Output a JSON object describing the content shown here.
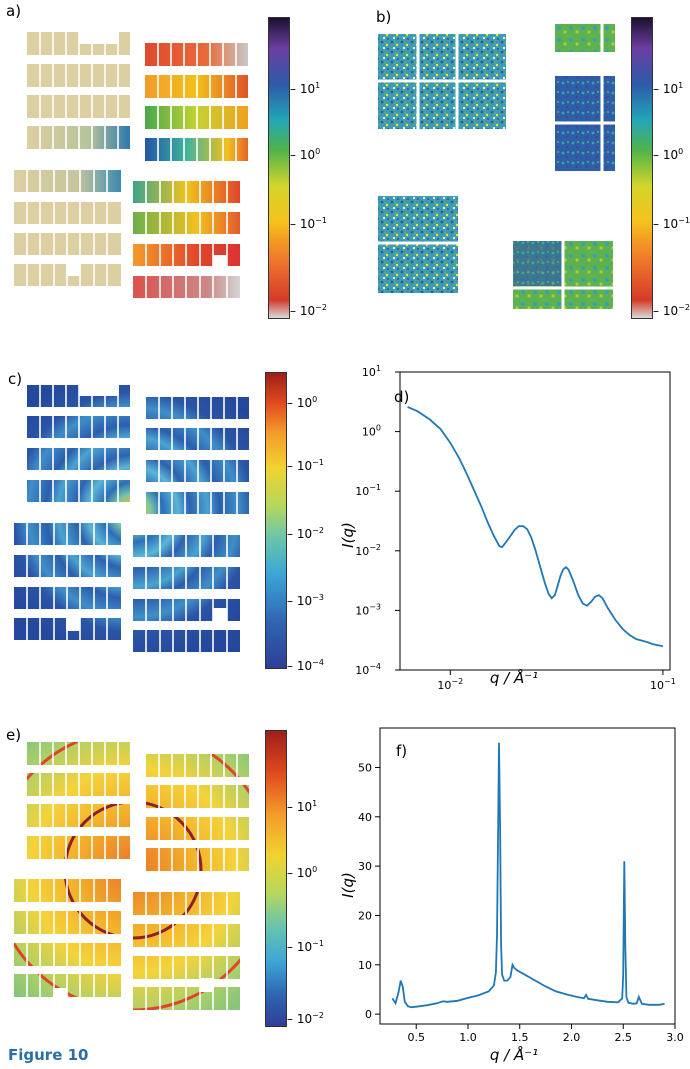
{
  "figure": {
    "caption_label": "Figure 10",
    "panel_labels": [
      "a)",
      "b)",
      "c)",
      "d)",
      "e)",
      "f)"
    ]
  },
  "colorbars": {
    "a": {
      "ticks": [
        {
          "base": "10",
          "exp": "1",
          "frac": 0.24
        },
        {
          "base": "10",
          "exp": "0",
          "frac": 0.46
        },
        {
          "base": "10",
          "exp": "−1",
          "frac": 0.69
        },
        {
          "base": "10",
          "exp": "−2",
          "frac": 0.98
        }
      ]
    },
    "b": {
      "ticks": [
        {
          "base": "10",
          "exp": "1",
          "frac": 0.24
        },
        {
          "base": "10",
          "exp": "0",
          "frac": 0.46
        },
        {
          "base": "10",
          "exp": "−1",
          "frac": 0.69
        },
        {
          "base": "10",
          "exp": "−2",
          "frac": 0.98
        }
      ]
    },
    "c": {
      "ticks": [
        {
          "base": "10",
          "exp": "0",
          "frac": 0.105
        },
        {
          "base": "10",
          "exp": "−1",
          "frac": 0.32
        },
        {
          "base": "10",
          "exp": "−2",
          "frac": 0.55
        },
        {
          "base": "10",
          "exp": "−3",
          "frac": 0.775
        },
        {
          "base": "10",
          "exp": "−4",
          "frac": 0.995
        }
      ]
    },
    "e": {
      "ticks": [
        {
          "base": "10",
          "exp": "1",
          "frac": 0.26
        },
        {
          "base": "10",
          "exp": "0",
          "frac": 0.485
        },
        {
          "base": "10",
          "exp": "−1",
          "frac": 0.735
        },
        {
          "base": "10",
          "exp": "−2",
          "frac": 0.98
        }
      ]
    }
  },
  "chart_data": [
    {
      "panel": "d)",
      "type": "line",
      "xscale": "log",
      "yscale": "log",
      "xlim": [
        0.0058,
        0.108
      ],
      "ylim": [
        0.0001,
        10
      ],
      "xticks": [
        {
          "base": "10",
          "exp": "−2",
          "value": 0.01
        },
        {
          "base": "10",
          "exp": "−1",
          "value": 0.1
        }
      ],
      "yticks": [
        {
          "base": "10",
          "exp": "1",
          "value": 10
        },
        {
          "base": "10",
          "exp": "0",
          "value": 1
        },
        {
          "base": "10",
          "exp": "−1",
          "value": 0.1
        },
        {
          "base": "10",
          "exp": "−2",
          "value": 0.01
        },
        {
          "base": "10",
          "exp": "−3",
          "value": 0.001
        },
        {
          "base": "10",
          "exp": "−4",
          "value": 0.0001
        }
      ],
      "xlabel": "q / Å⁻¹",
      "ylabel": "I(q)",
      "x": [
        0.0063,
        0.007,
        0.008,
        0.009,
        0.01,
        0.011,
        0.012,
        0.013,
        0.014,
        0.015,
        0.016,
        0.017,
        0.0175,
        0.018,
        0.019,
        0.02,
        0.021,
        0.022,
        0.023,
        0.024,
        0.025,
        0.026,
        0.027,
        0.028,
        0.029,
        0.03,
        0.031,
        0.032,
        0.033,
        0.034,
        0.035,
        0.036,
        0.038,
        0.04,
        0.042,
        0.044,
        0.046,
        0.048,
        0.05,
        0.052,
        0.055,
        0.06,
        0.065,
        0.07,
        0.075,
        0.08,
        0.085,
        0.09,
        0.095,
        0.1
      ],
      "y": [
        2.6,
        2.2,
        1.6,
        1.1,
        0.65,
        0.36,
        0.19,
        0.1,
        0.055,
        0.03,
        0.018,
        0.012,
        0.0115,
        0.013,
        0.017,
        0.022,
        0.026,
        0.026,
        0.023,
        0.017,
        0.011,
        0.0068,
        0.0042,
        0.0027,
        0.0019,
        0.0016,
        0.0018,
        0.0026,
        0.0038,
        0.0049,
        0.0053,
        0.0048,
        0.003,
        0.0018,
        0.0013,
        0.0012,
        0.0014,
        0.0017,
        0.0018,
        0.0016,
        0.0011,
        0.00068,
        0.00048,
        0.00038,
        0.00033,
        0.00031,
        0.00029,
        0.00027,
        0.00026,
        0.00025
      ],
      "color": "#1f77b4"
    },
    {
      "panel": "f)",
      "type": "line",
      "xlim": [
        0.15,
        3.0
      ],
      "ylim": [
        -2,
        58
      ],
      "xticks": [
        "0.5",
        "1.0",
        "1.5",
        "2.0",
        "2.5",
        "3.0"
      ],
      "yticks": [
        "0",
        "10",
        "20",
        "30",
        "40",
        "50"
      ],
      "xlabel": "q / Å⁻¹",
      "ylabel": "I(q)",
      "x": [
        0.27,
        0.3,
        0.33,
        0.35,
        0.37,
        0.39,
        0.42,
        0.45,
        0.5,
        0.6,
        0.7,
        0.76,
        0.8,
        0.9,
        1.0,
        1.1,
        1.2,
        1.25,
        1.27,
        1.28,
        1.29,
        1.3,
        1.31,
        1.32,
        1.33,
        1.35,
        1.38,
        1.41,
        1.43,
        1.45,
        1.48,
        1.55,
        1.65,
        1.75,
        1.85,
        1.95,
        2.05,
        2.12,
        2.14,
        2.16,
        2.25,
        2.35,
        2.45,
        2.49,
        2.5,
        2.51,
        2.52,
        2.53,
        2.55,
        2.6,
        2.63,
        2.65,
        2.68,
        2.75,
        2.85,
        2.9
      ],
      "y": [
        3.2,
        2.2,
        4.5,
        6.8,
        5.5,
        2.5,
        1.6,
        1.4,
        1.5,
        1.8,
        2.2,
        2.6,
        2.5,
        2.7,
        3.3,
        3.8,
        4.6,
        5.8,
        8.5,
        16.0,
        35.0,
        55.0,
        38.0,
        14.0,
        8.0,
        6.8,
        6.8,
        7.5,
        10.0,
        9.3,
        8.8,
        8.0,
        6.8,
        5.6,
        4.6,
        4.0,
        3.5,
        3.2,
        3.9,
        3.1,
        2.8,
        2.5,
        2.4,
        3.2,
        8.0,
        31.0,
        14.0,
        3.5,
        2.3,
        2.1,
        2.2,
        3.5,
        2.1,
        1.9,
        1.9,
        2.1
      ],
      "color": "#1f77b4"
    }
  ]
}
